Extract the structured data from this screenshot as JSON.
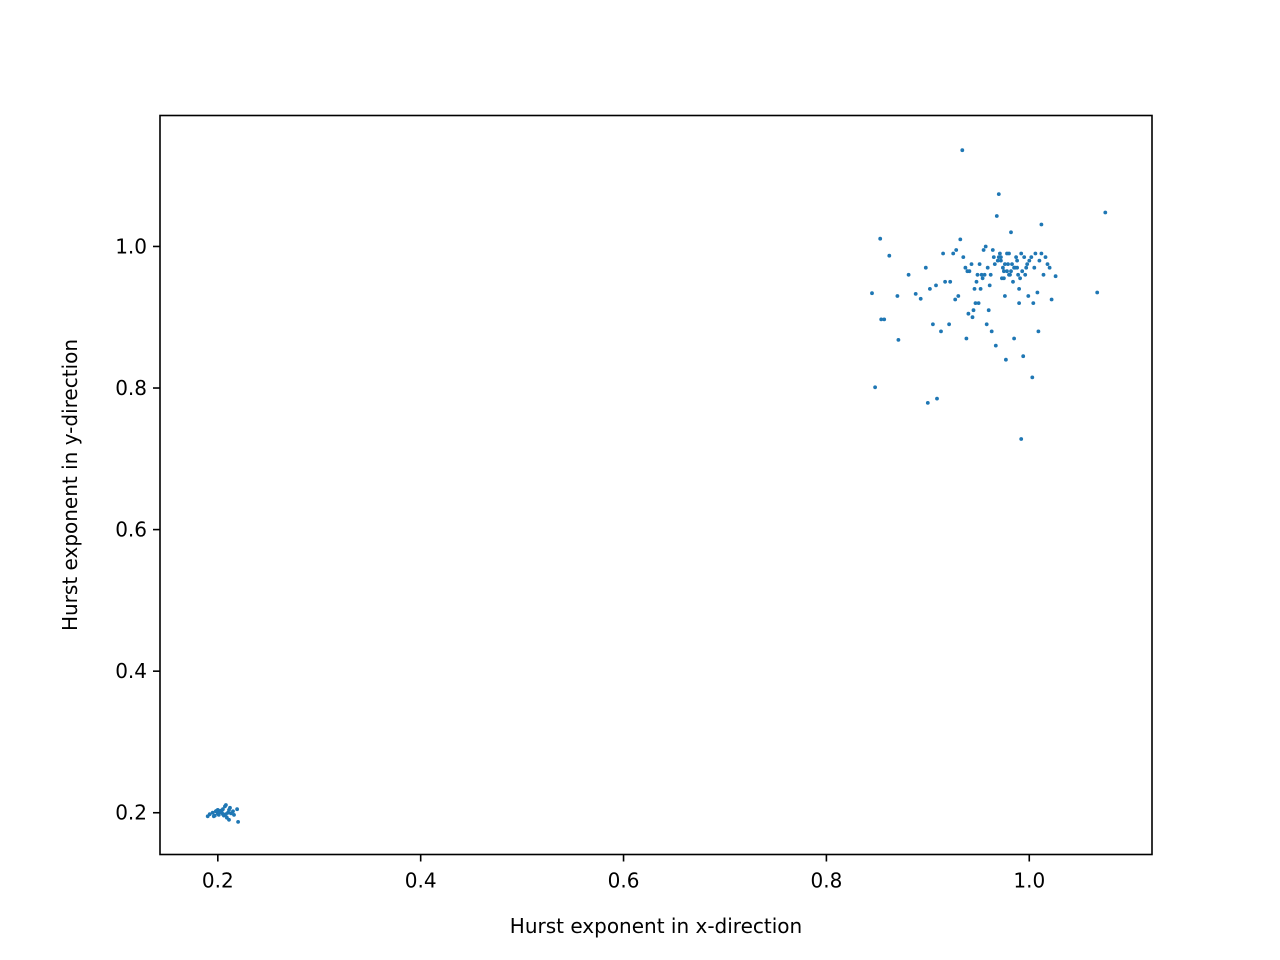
{
  "chart_data": {
    "type": "scatter",
    "xlabel": "Hurst exponent in x-direction",
    "ylabel": "Hurst exponent in y-direction",
    "xlim": [
      0.143,
      1.121
    ],
    "ylim": [
      0.141,
      1.185
    ],
    "xticks": [
      0.2,
      0.4,
      0.6,
      0.8,
      1.0
    ],
    "xtick_labels": [
      "0.2",
      "0.4",
      "0.6",
      "0.8",
      "1.0"
    ],
    "yticks": [
      0.2,
      0.4,
      0.6,
      0.8,
      1.0
    ],
    "ytick_labels": [
      "0.2",
      "0.4",
      "0.6",
      "0.8",
      "1.0"
    ],
    "grid": false,
    "marker_color": "#1f77b4",
    "series": [
      {
        "x": [
          0.19,
          0.192,
          0.195,
          0.197,
          0.198,
          0.2,
          0.2,
          0.201,
          0.202,
          0.203,
          0.204,
          0.205,
          0.205,
          0.206,
          0.207,
          0.208,
          0.209,
          0.21,
          0.211,
          0.212,
          0.213,
          0.215,
          0.216,
          0.219,
          0.22,
          0.208,
          0.202,
          0.196,
          0.211,
          0.199,
          0.934,
          0.97,
          0.968,
          1.075,
          0.853,
          1.012,
          0.862,
          1.067,
          0.845,
          0.854,
          0.857,
          0.871,
          0.848,
          1.003,
          0.9,
          0.909,
          0.992,
          0.881,
          0.888,
          0.893,
          0.87,
          0.905,
          0.913,
          0.921,
          0.93,
          0.938,
          0.944,
          0.95,
          0.958,
          0.963,
          0.967,
          0.977,
          0.985,
          1.009,
          1.022,
          0.902,
          0.917,
          0.94,
          0.96,
          0.994,
          1.026,
          1.016,
          0.925,
          0.932,
          0.946,
          0.953,
          0.982,
          1.012,
          0.976,
          0.99,
          0.957,
          0.964,
          0.971,
          0.987,
          0.998,
          1.005,
          0.978,
          0.979,
          0.974,
          0.969,
          0.972,
          0.981,
          0.983,
          0.986,
          0.988,
          0.975,
          0.973,
          0.98,
          0.984,
          0.989,
          0.991,
          0.966,
          0.962,
          0.993,
          0.995,
          0.959,
          0.996,
          0.955,
          1.0,
          0.951,
          0.948,
          1.002,
          1.006,
          0.943,
          0.941,
          0.937,
          1.01,
          0.928,
          1.014,
          1.018,
          0.97,
          0.975,
          0.98,
          0.985,
          0.976,
          0.982,
          0.972,
          0.978,
          0.988,
          0.965,
          0.99,
          0.992,
          0.961,
          0.956,
          0.999,
          1.004,
          0.952,
          0.947,
          0.945,
          0.935,
          0.922,
          0.915,
          0.908,
          0.898,
          0.927,
          0.939,
          0.949,
          0.954,
          0.997,
          1.008,
          1.02
        ],
        "y": [
          0.195,
          0.198,
          0.2,
          0.196,
          0.202,
          0.199,
          0.204,
          0.197,
          0.201,
          0.203,
          0.2,
          0.198,
          0.205,
          0.196,
          0.209,
          0.211,
          0.193,
          0.2,
          0.19,
          0.207,
          0.199,
          0.202,
          0.197,
          0.205,
          0.187,
          0.198,
          0.201,
          0.195,
          0.204,
          0.203,
          1.136,
          1.074,
          1.043,
          1.048,
          1.011,
          1.031,
          0.987,
          0.935,
          0.934,
          0.897,
          0.897,
          0.868,
          0.801,
          0.815,
          0.779,
          0.785,
          0.728,
          0.96,
          0.933,
          0.926,
          0.93,
          0.89,
          0.88,
          0.89,
          0.93,
          0.87,
          0.9,
          0.92,
          0.89,
          0.88,
          0.86,
          0.84,
          0.87,
          0.88,
          0.925,
          0.94,
          0.95,
          0.905,
          0.91,
          0.845,
          0.958,
          0.985,
          0.99,
          1.01,
          0.94,
          0.96,
          1.02,
          0.99,
          0.93,
          0.92,
          1.0,
          0.995,
          0.99,
          0.985,
          0.975,
          0.97,
          0.965,
          0.975,
          0.97,
          0.98,
          0.985,
          0.96,
          0.975,
          0.97,
          0.98,
          0.965,
          0.955,
          0.99,
          0.95,
          0.96,
          0.955,
          0.975,
          0.96,
          0.965,
          0.985,
          0.97,
          0.96,
          0.995,
          0.98,
          0.975,
          0.95,
          0.985,
          0.99,
          0.975,
          0.965,
          0.97,
          0.98,
          0.995,
          0.96,
          0.975,
          0.985,
          0.955,
          0.96,
          0.97,
          0.975,
          0.965,
          0.98,
          0.99,
          0.97,
          0.985,
          0.94,
          0.99,
          0.945,
          0.96,
          0.93,
          0.92,
          0.94,
          0.92,
          0.91,
          0.985,
          0.95,
          0.99,
          0.945,
          0.97,
          0.925,
          0.965,
          0.96,
          0.955,
          0.97,
          0.935,
          0.97
        ]
      }
    ]
  }
}
